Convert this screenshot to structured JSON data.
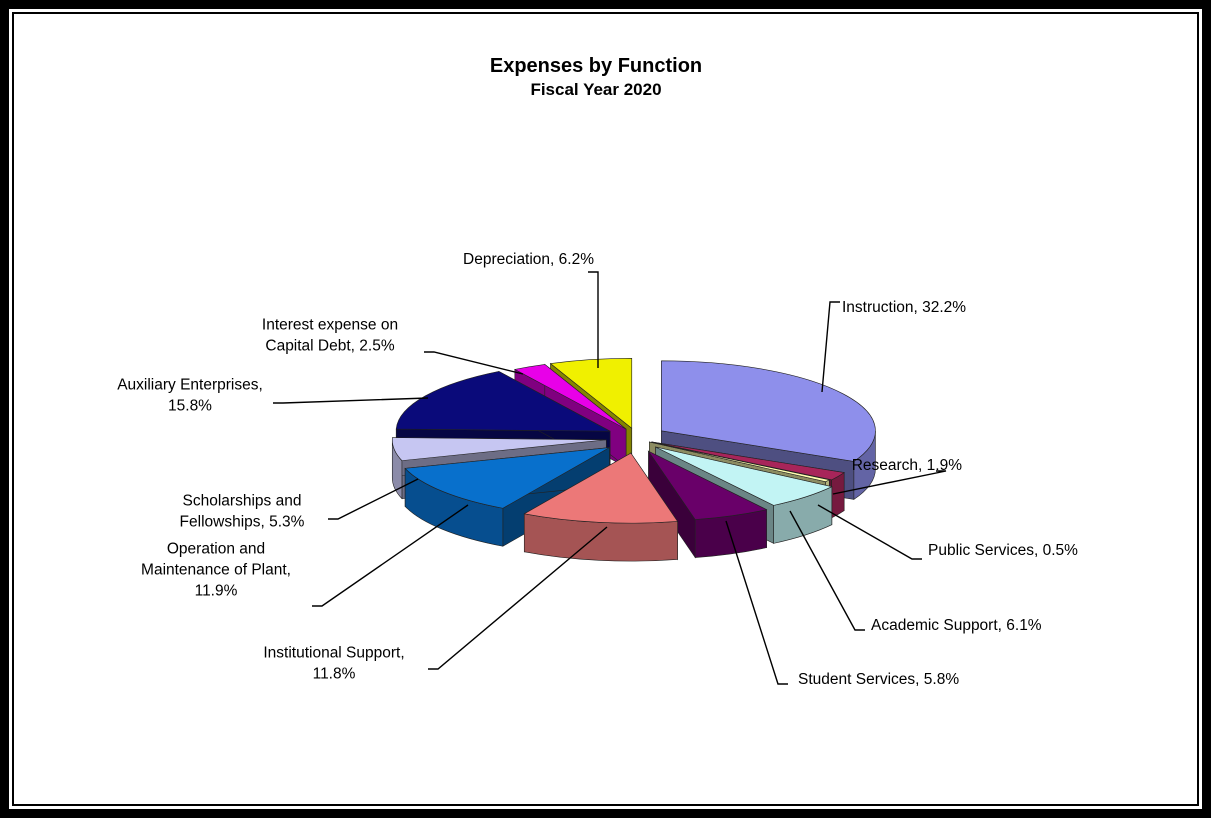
{
  "chart_data": {
    "type": "pie",
    "title": "Expenses by Function",
    "subtitle": "Fiscal Year 2020",
    "slices": [
      {
        "name": "Instruction",
        "value": 32.2,
        "label": "32.2%",
        "color": "#8E8FEB"
      },
      {
        "name": "Research",
        "value": 1.9,
        "label": "1.9%",
        "color": "#A8255A"
      },
      {
        "name": "Public Services",
        "value": 0.5,
        "label": "0.5%",
        "color": "#FFFFB0"
      },
      {
        "name": "Academic Support",
        "value": 6.1,
        "label": "6.1%",
        "color": "#C2F4F4"
      },
      {
        "name": "Student Services",
        "value": 5.8,
        "label": "5.8%",
        "color": "#690069"
      },
      {
        "name": "Institutional Support",
        "value": 11.8,
        "label": "11.8%",
        "color": "#EC7878"
      },
      {
        "name": "Operation and Maintenance of Plant",
        "value": 11.9,
        "label": "11.9%",
        "color": "#0870CC"
      },
      {
        "name": "Scholarships and Fellowships",
        "value": 5.3,
        "label": "5.3%",
        "color": "#C6C6F2"
      },
      {
        "name": "Auxiliary Enterprises",
        "value": 15.8,
        "label": "15.8%",
        "color": "#0A0A7A"
      },
      {
        "name": "Interest expense on Capital Debt",
        "value": 2.5,
        "label": "2.5%",
        "color": "#E800E8"
      },
      {
        "name": "Depreciation",
        "value": 6.2,
        "label": "6.2%",
        "color": "#F0F000"
      }
    ],
    "label_lines": [
      [
        "Instruction, 32.2%"
      ],
      [
        "Research, 1.9%"
      ],
      [
        "Public Services, 0.5%"
      ],
      [
        "Academic Support, 6.1%"
      ],
      [
        "Student Services, 5.8%"
      ],
      [
        "Institutional Support,",
        "11.8%"
      ],
      [
        "Operation and",
        "Maintenance of Plant,",
        "11.9%"
      ],
      [
        "Scholarships and",
        "Fellowships, 5.3%"
      ],
      [
        "Auxiliary Enterprises,",
        "15.8%"
      ],
      [
        "Interest expense on",
        "Capital Debt, 2.5%"
      ],
      [
        "Depreciation, 6.2%"
      ]
    ],
    "legend": "none",
    "grid": false
  }
}
